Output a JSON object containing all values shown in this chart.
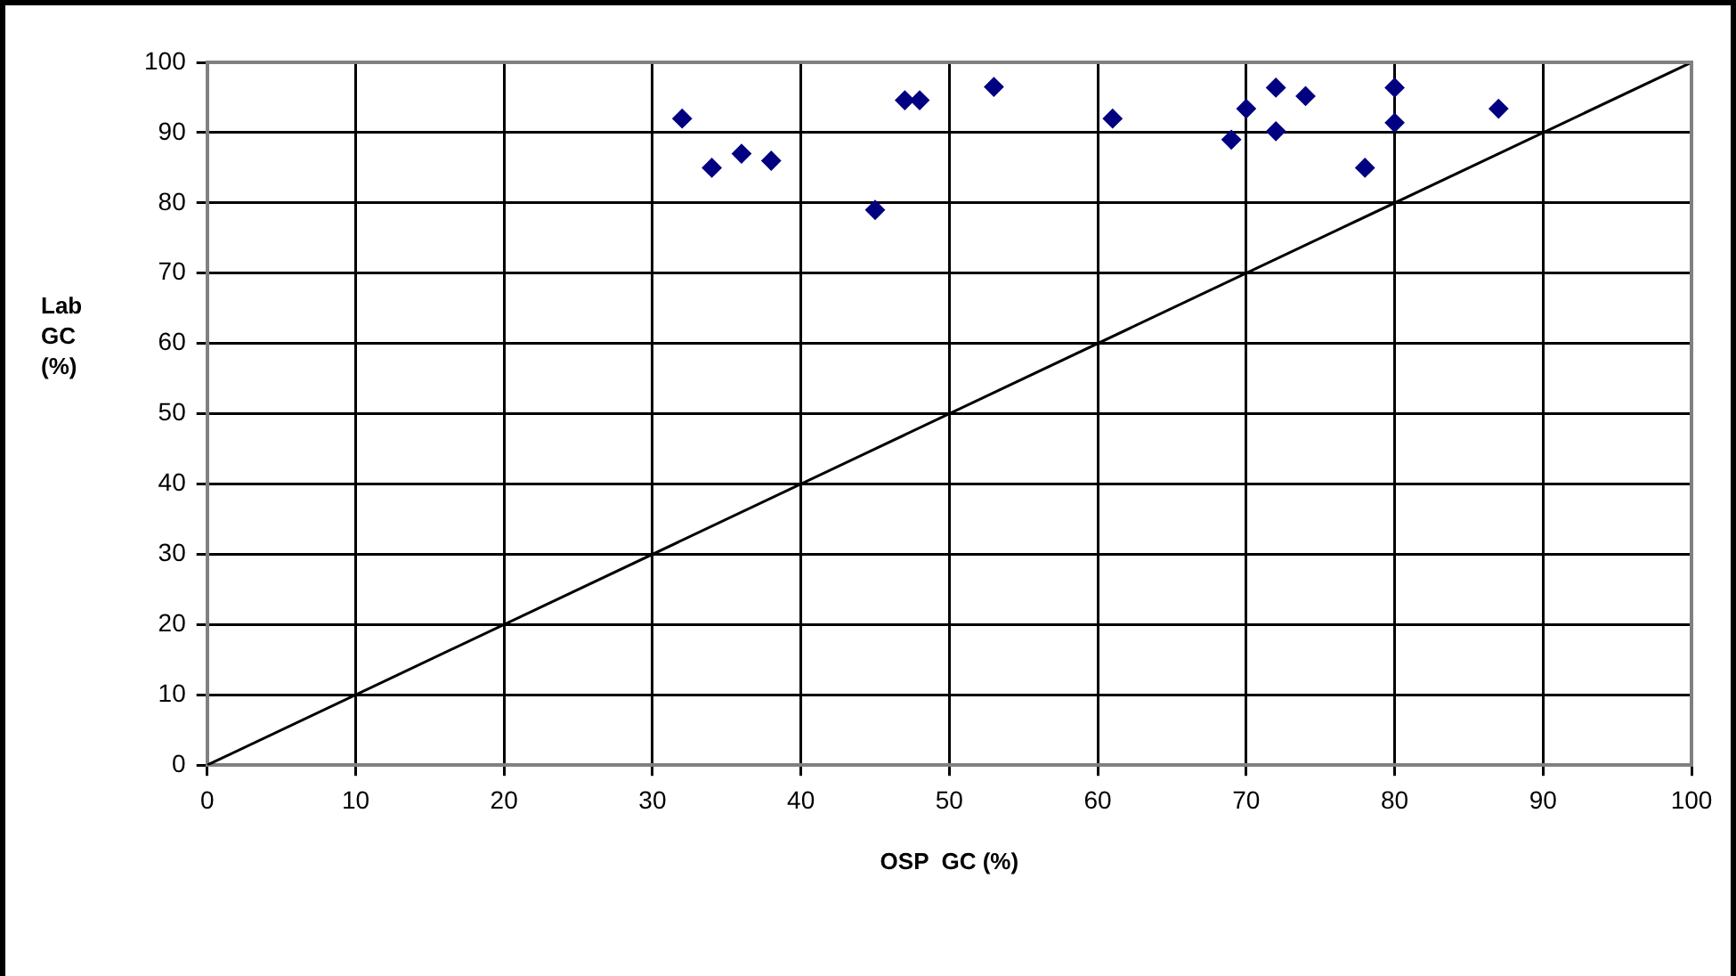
{
  "chart_data": {
    "type": "scatter",
    "xlabel": "OSP  GC (%)",
    "ylabel": "Lab GC (%)",
    "xlim": [
      0,
      100
    ],
    "xticks": [
      0,
      10,
      20,
      30,
      40,
      50,
      60,
      70,
      80,
      90,
      100
    ],
    "ylim": [
      0,
      100
    ],
    "yticks": [
      0,
      10,
      20,
      30,
      40,
      50,
      60,
      70,
      80,
      90,
      100
    ],
    "grid": true,
    "legend": false,
    "marker": "diamond",
    "series": [
      {
        "type": "scatter",
        "color": "#000080",
        "x": [
          32,
          34,
          36,
          38,
          45,
          47,
          48,
          53,
          61,
          69,
          70,
          72,
          72,
          74,
          78,
          80,
          80,
          87
        ],
        "values": [
          92,
          85,
          87,
          86,
          79,
          94.6,
          94.6,
          96.5,
          92,
          89,
          93.4,
          96.4,
          90.2,
          95.2,
          85,
          96.4,
          91.4,
          93.4
        ]
      },
      {
        "type": "line",
        "color": "#000000",
        "marker": "none",
        "x": [
          0,
          100
        ],
        "values": [
          0,
          100
        ]
      }
    ]
  }
}
